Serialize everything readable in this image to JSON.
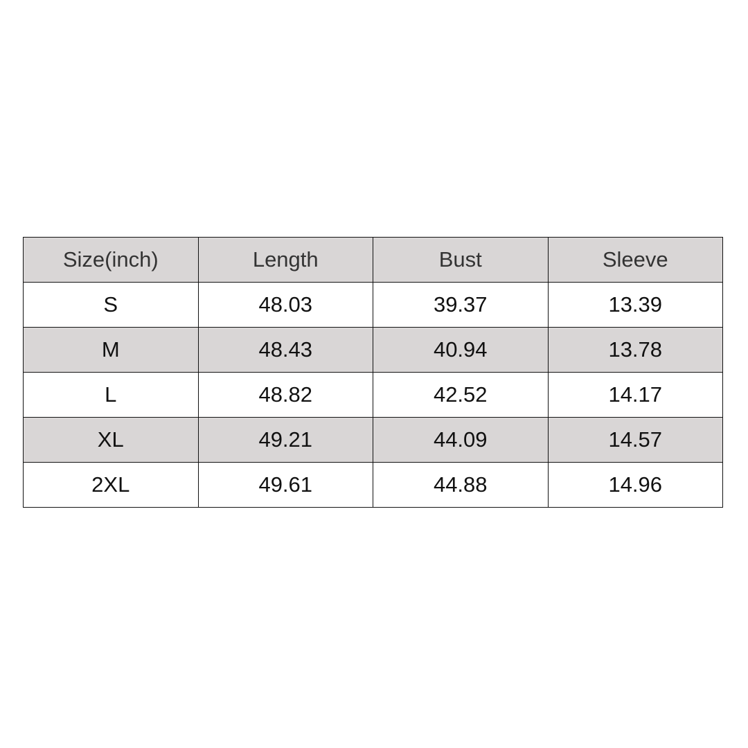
{
  "table": {
    "header": [
      "Size(inch)",
      "Length",
      "Bust",
      "Sleeve"
    ],
    "rows": [
      [
        "S",
        "48.03",
        "39.37",
        "13.39"
      ],
      [
        "M",
        "48.43",
        "40.94",
        "13.78"
      ],
      [
        "L",
        "48.82",
        "42.52",
        "14.17"
      ],
      [
        "XL",
        "49.21",
        "44.09",
        "14.57"
      ],
      [
        "2XL",
        "49.61",
        "44.88",
        "14.96"
      ]
    ]
  }
}
